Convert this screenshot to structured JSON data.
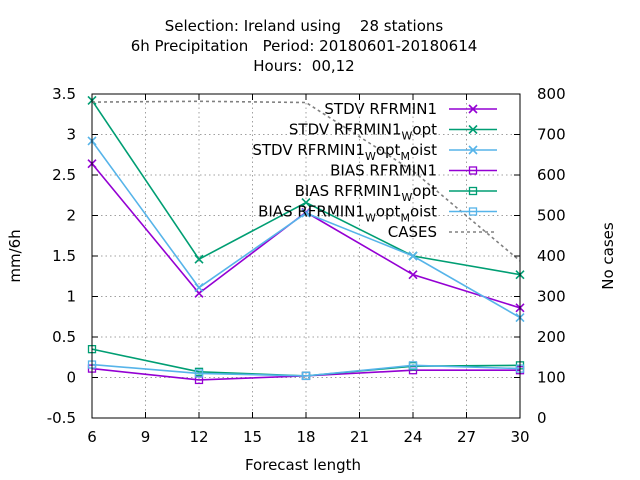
{
  "chart_data": {
    "type": "line",
    "title": [
      "Selection: Ireland using    28 stations",
      "6h Precipitation   Period: 20180601-20180614",
      "Hours:  00,12"
    ],
    "xlabel": "Forecast length",
    "ylabel": "mm/6h",
    "y2label": "No cases",
    "xlim": [
      6,
      30
    ],
    "ylim": [
      -0.5,
      3.5
    ],
    "y2lim": [
      0,
      800
    ],
    "xticks": [
      6,
      9,
      12,
      15,
      18,
      21,
      24,
      27,
      30
    ],
    "yticks": [
      -0.5,
      0,
      0.5,
      1,
      1.5,
      2,
      2.5,
      3,
      3.5
    ],
    "y2ticks": [
      0,
      100,
      200,
      300,
      400,
      500,
      600,
      700,
      800
    ],
    "grid": true,
    "legend_position": "top-right",
    "x": [
      6,
      12,
      18,
      24,
      30
    ],
    "series": [
      {
        "name": "STDV RFRMIN1",
        "base": "STDV RFRMIN1",
        "sub1": "",
        "mid": "",
        "sub2": "",
        "tail": "",
        "marker": "x",
        "color": "#9400d3",
        "dashed": false,
        "axis": "y",
        "values": [
          2.64,
          1.04,
          2.04,
          1.27,
          0.86
        ]
      },
      {
        "name": "STDV RFRMIN1Wopt",
        "base": "STDV RFRMIN1",
        "sub1": "W",
        "mid": "opt",
        "sub2": "",
        "tail": "",
        "marker": "x",
        "color": "#009e73",
        "dashed": false,
        "axis": "y",
        "values": [
          3.42,
          1.46,
          2.16,
          1.5,
          1.27
        ]
      },
      {
        "name": "STDV RFRMIN1WoptMoist",
        "base": "STDV RFRMIN1",
        "sub1": "W",
        "mid": "opt",
        "sub2": "M",
        "tail": "oist",
        "marker": "x",
        "color": "#56b4e9",
        "dashed": false,
        "axis": "y",
        "values": [
          2.92,
          1.11,
          2.03,
          1.5,
          0.74
        ]
      },
      {
        "name": "BIAS RFRMIN1",
        "base": "BIAS RFRMIN1",
        "sub1": "",
        "mid": "",
        "sub2": "",
        "tail": "",
        "marker": "square",
        "color": "#9400d3",
        "dashed": false,
        "axis": "y",
        "values": [
          0.11,
          -0.03,
          0.02,
          0.09,
          0.09
        ]
      },
      {
        "name": "BIAS RFRMIN1Wopt",
        "base": "BIAS RFRMIN1",
        "sub1": "W",
        "mid": "opt",
        "sub2": "",
        "tail": "",
        "marker": "square",
        "color": "#009e73",
        "dashed": false,
        "axis": "y",
        "values": [
          0.35,
          0.07,
          0.02,
          0.14,
          0.15
        ]
      },
      {
        "name": "BIAS RFRMIN1WoptMoist",
        "base": "BIAS RFRMIN1",
        "sub1": "W",
        "mid": "opt",
        "sub2": "M",
        "tail": "oist",
        "marker": "square",
        "color": "#56b4e9",
        "dashed": false,
        "axis": "y",
        "values": [
          0.16,
          0.05,
          0.02,
          0.15,
          0.11
        ]
      },
      {
        "name": "CASES",
        "base": "CASES",
        "sub1": "",
        "mid": "",
        "sub2": "",
        "tail": "",
        "marker": "none",
        "color": "#808080",
        "dashed": true,
        "axis": "y2",
        "values": [
          780,
          782,
          779,
          610,
          388
        ]
      }
    ]
  }
}
